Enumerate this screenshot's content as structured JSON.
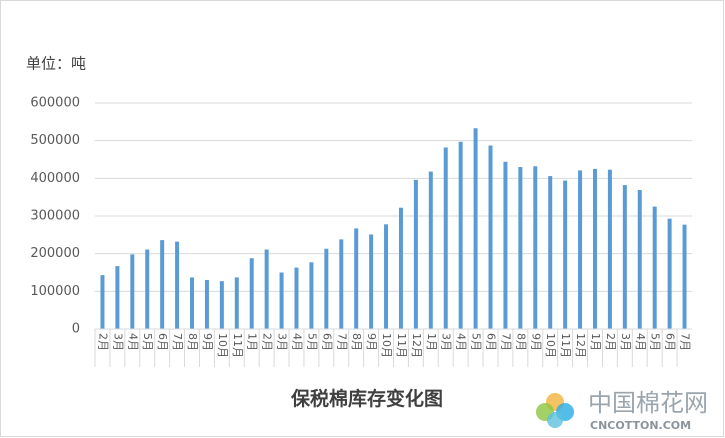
{
  "chart_data": {
    "type": "bar",
    "title": "保税棉库存变化图",
    "unit_label": "单位：吨",
    "watermark": "中国棉花网",
    "watermark_sub": "CNCOTTON.COM",
    "categories": [
      "2月",
      "3月",
      "4月",
      "5月",
      "6月",
      "7月",
      "8月",
      "9月",
      "10月",
      "11月",
      "1月",
      "2月",
      "3月",
      "4月",
      "5月",
      "6月",
      "7月",
      "8月",
      "9月",
      "10月",
      "11月",
      "12月",
      "1月",
      "3月",
      "4月",
      "5月",
      "6月",
      "7月",
      "8月",
      "9月",
      "10月",
      "11月",
      "12月",
      "1月",
      "2月",
      "3月",
      "4月",
      "5月",
      "6月",
      "7月"
    ],
    "values": [
      143000,
      167000,
      198000,
      211000,
      236000,
      232000,
      137000,
      130000,
      127000,
      137000,
      188000,
      211000,
      150000,
      163000,
      177000,
      213000,
      238000,
      267000,
      251000,
      278000,
      322000,
      396000,
      418000,
      482000,
      497000,
      533000,
      487000,
      444000,
      430000,
      432000,
      406000,
      394000,
      421000,
      425000,
      423000,
      382000,
      369000,
      325000,
      293000,
      277000
    ],
    "color": "#5b9bd5",
    "ylim": [
      0,
      600000
    ],
    "yticks": [
      0,
      100000,
      200000,
      300000,
      400000,
      500000,
      600000
    ],
    "grid": true
  }
}
